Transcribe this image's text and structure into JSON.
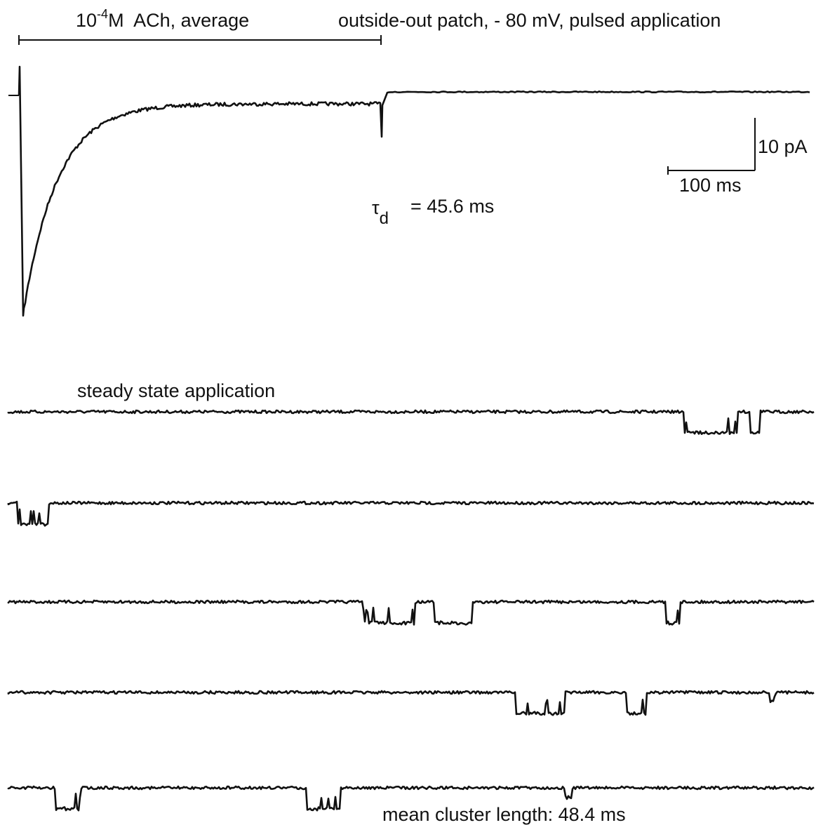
{
  "figure": {
    "top_label": {
      "base": "10",
      "exponent": "-4",
      "rest": "M  ACh, average"
    },
    "condition": "outside-out patch, - 80 mV, pulsed application",
    "scale_bar": {
      "current": "10 pA",
      "time": "100 ms"
    },
    "tau": {
      "symbol": "τ",
      "subscript": "d",
      "value": "= 45.6 ms"
    },
    "steady_label": "steady state application",
    "cluster_label": "mean cluster length: 48.4 ms"
  }
}
